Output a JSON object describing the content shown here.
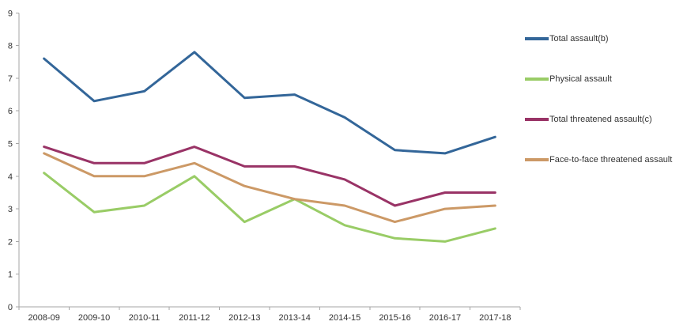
{
  "chart_data": {
    "type": "line",
    "title": "",
    "xlabel": "",
    "ylabel": "",
    "categories": [
      "2008-09",
      "2009-10",
      "2010-11",
      "2011-12",
      "2012-13",
      "2013-14",
      "2014-15",
      "2015-16",
      "2016-17",
      "2017-18"
    ],
    "series": [
      {
        "name": "Total assault(b)",
        "color": "#336699",
        "values": [
          7.6,
          6.3,
          6.6,
          7.8,
          6.4,
          6.5,
          5.8,
          4.8,
          4.7,
          5.2
        ]
      },
      {
        "name": "Physical assault",
        "color": "#99CC66",
        "values": [
          4.1,
          2.9,
          3.1,
          4.0,
          2.6,
          3.3,
          2.5,
          2.1,
          2.0,
          2.4
        ]
      },
      {
        "name": "Total threatened assault(c)",
        "color": "#993366",
        "values": [
          4.9,
          4.4,
          4.4,
          4.9,
          4.3,
          4.3,
          3.9,
          3.1,
          3.5,
          3.5
        ]
      },
      {
        "name": "Face-to-face threatened assault",
        "color": "#CC9966",
        "values": [
          4.7,
          4.0,
          4.0,
          4.4,
          3.7,
          3.3,
          3.1,
          2.6,
          3.0,
          3.1
        ]
      }
    ],
    "ylim": [
      0,
      9
    ],
    "ytick_step": 1,
    "yticks": [
      0,
      1,
      2,
      3,
      4,
      5,
      6,
      7,
      8,
      9
    ],
    "grid": false,
    "legend_position": "right",
    "axis_color": "#A6A6A6",
    "text_color": "#333333"
  }
}
